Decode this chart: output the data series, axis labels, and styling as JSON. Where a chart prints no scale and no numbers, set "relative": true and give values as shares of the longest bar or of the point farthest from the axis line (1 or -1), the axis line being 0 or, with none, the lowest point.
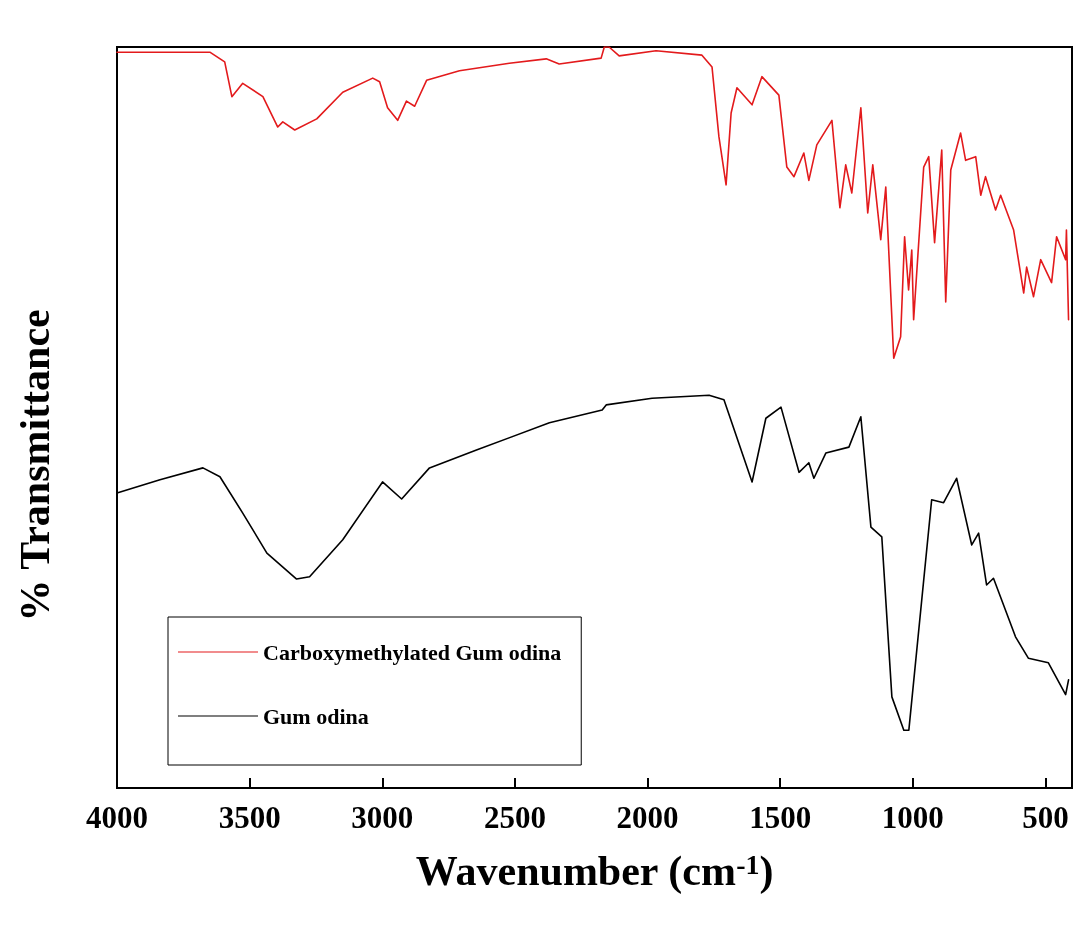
{
  "chart_data": {
    "type": "line",
    "relative": true,
    "xlabel": "Wavenumber (cm$^{-1}$)",
    "ylabel": "% Transmittance",
    "xlim": [
      4000,
      400
    ],
    "xticks": [
      4000,
      3500,
      3000,
      2500,
      2000,
      1500,
      1000,
      500
    ],
    "legend": "bottom left",
    "grid": false,
    "marker": "none",
    "line_style": "solid",
    "series": [
      {
        "name": "Carboxymethylated Gum odina",
        "color": "#e31a1c",
        "x": [
          4000,
          3650,
          3594,
          3567,
          3526,
          3450,
          3394,
          3375,
          3330,
          3247,
          3149,
          3036,
          3010,
          2980,
          2942,
          2909,
          2878,
          2833,
          2709,
          2521,
          2382,
          2333,
          2175,
          2163,
          2145,
          2107,
          1968,
          1795,
          1757,
          1731,
          1704,
          1685,
          1663,
          1606,
          1569,
          1505,
          1475,
          1448,
          1411,
          1392,
          1362,
          1305,
          1275,
          1253,
          1230,
          1196,
          1170,
          1151,
          1121,
          1102,
          1072,
          1046,
          1031,
          1016,
          1004,
          997,
          959,
          940,
          918,
          891,
          876,
          857,
          820,
          801,
          763,
          744,
          726,
          688,
          669,
          620,
          582,
          571,
          545,
          518,
          477,
          458,
          424,
          421,
          413
        ],
        "values": [
          0.993,
          0.993,
          0.98,
          0.933,
          0.951,
          0.933,
          0.892,
          0.899,
          0.888,
          0.903,
          0.939,
          0.958,
          0.953,
          0.918,
          0.901,
          0.927,
          0.92,
          0.955,
          0.968,
          0.978,
          0.984,
          0.977,
          0.985,
          1,
          1,
          0.988,
          0.995,
          0.989,
          0.973,
          0.879,
          0.814,
          0.911,
          0.945,
          0.922,
          0.96,
          0.935,
          0.838,
          0.825,
          0.857,
          0.82,
          0.868,
          0.901,
          0.783,
          0.841,
          0.803,
          0.918,
          0.776,
          0.841,
          0.74,
          0.811,
          0.58,
          0.609,
          0.744,
          0.672,
          0.726,
          0.632,
          0.838,
          0.852,
          0.736,
          0.861,
          0.656,
          0.834,
          0.884,
          0.847,
          0.852,
          0.8,
          0.825,
          0.78,
          0.8,
          0.753,
          0.668,
          0.703,
          0.663,
          0.713,
          0.682,
          0.744,
          0.713,
          0.753,
          0.632
        ]
      },
      {
        "name": "Gum odina",
        "color": "#000000",
        "x": [
          4000,
          3838,
          3676,
          3612,
          3526,
          3435,
          3323,
          3274,
          3149,
          2999,
          2927,
          2822,
          2645,
          2370,
          2171,
          2156,
          1983,
          1768,
          1712,
          1606,
          1554,
          1497,
          1429,
          1392,
          1373,
          1328,
          1241,
          1196,
          1158,
          1117,
          1079,
          1034,
          1015,
          929,
          884,
          835,
          778,
          752,
          722,
          696,
          613,
          564,
          489,
          424,
          413
        ],
        "values": [
          0.398,
          0.416,
          0.432,
          0.42,
          0.371,
          0.317,
          0.282,
          0.285,
          0.335,
          0.413,
          0.39,
          0.432,
          0.456,
          0.493,
          0.51,
          0.517,
          0.526,
          0.53,
          0.524,
          0.413,
          0.499,
          0.514,
          0.426,
          0.439,
          0.418,
          0.452,
          0.46,
          0.501,
          0.352,
          0.339,
          0.123,
          0.078,
          0.078,
          0.389,
          0.385,
          0.418,
          0.328,
          0.344,
          0.274,
          0.283,
          0.204,
          0.175,
          0.169,
          0.126,
          0.146
        ]
      }
    ]
  }
}
